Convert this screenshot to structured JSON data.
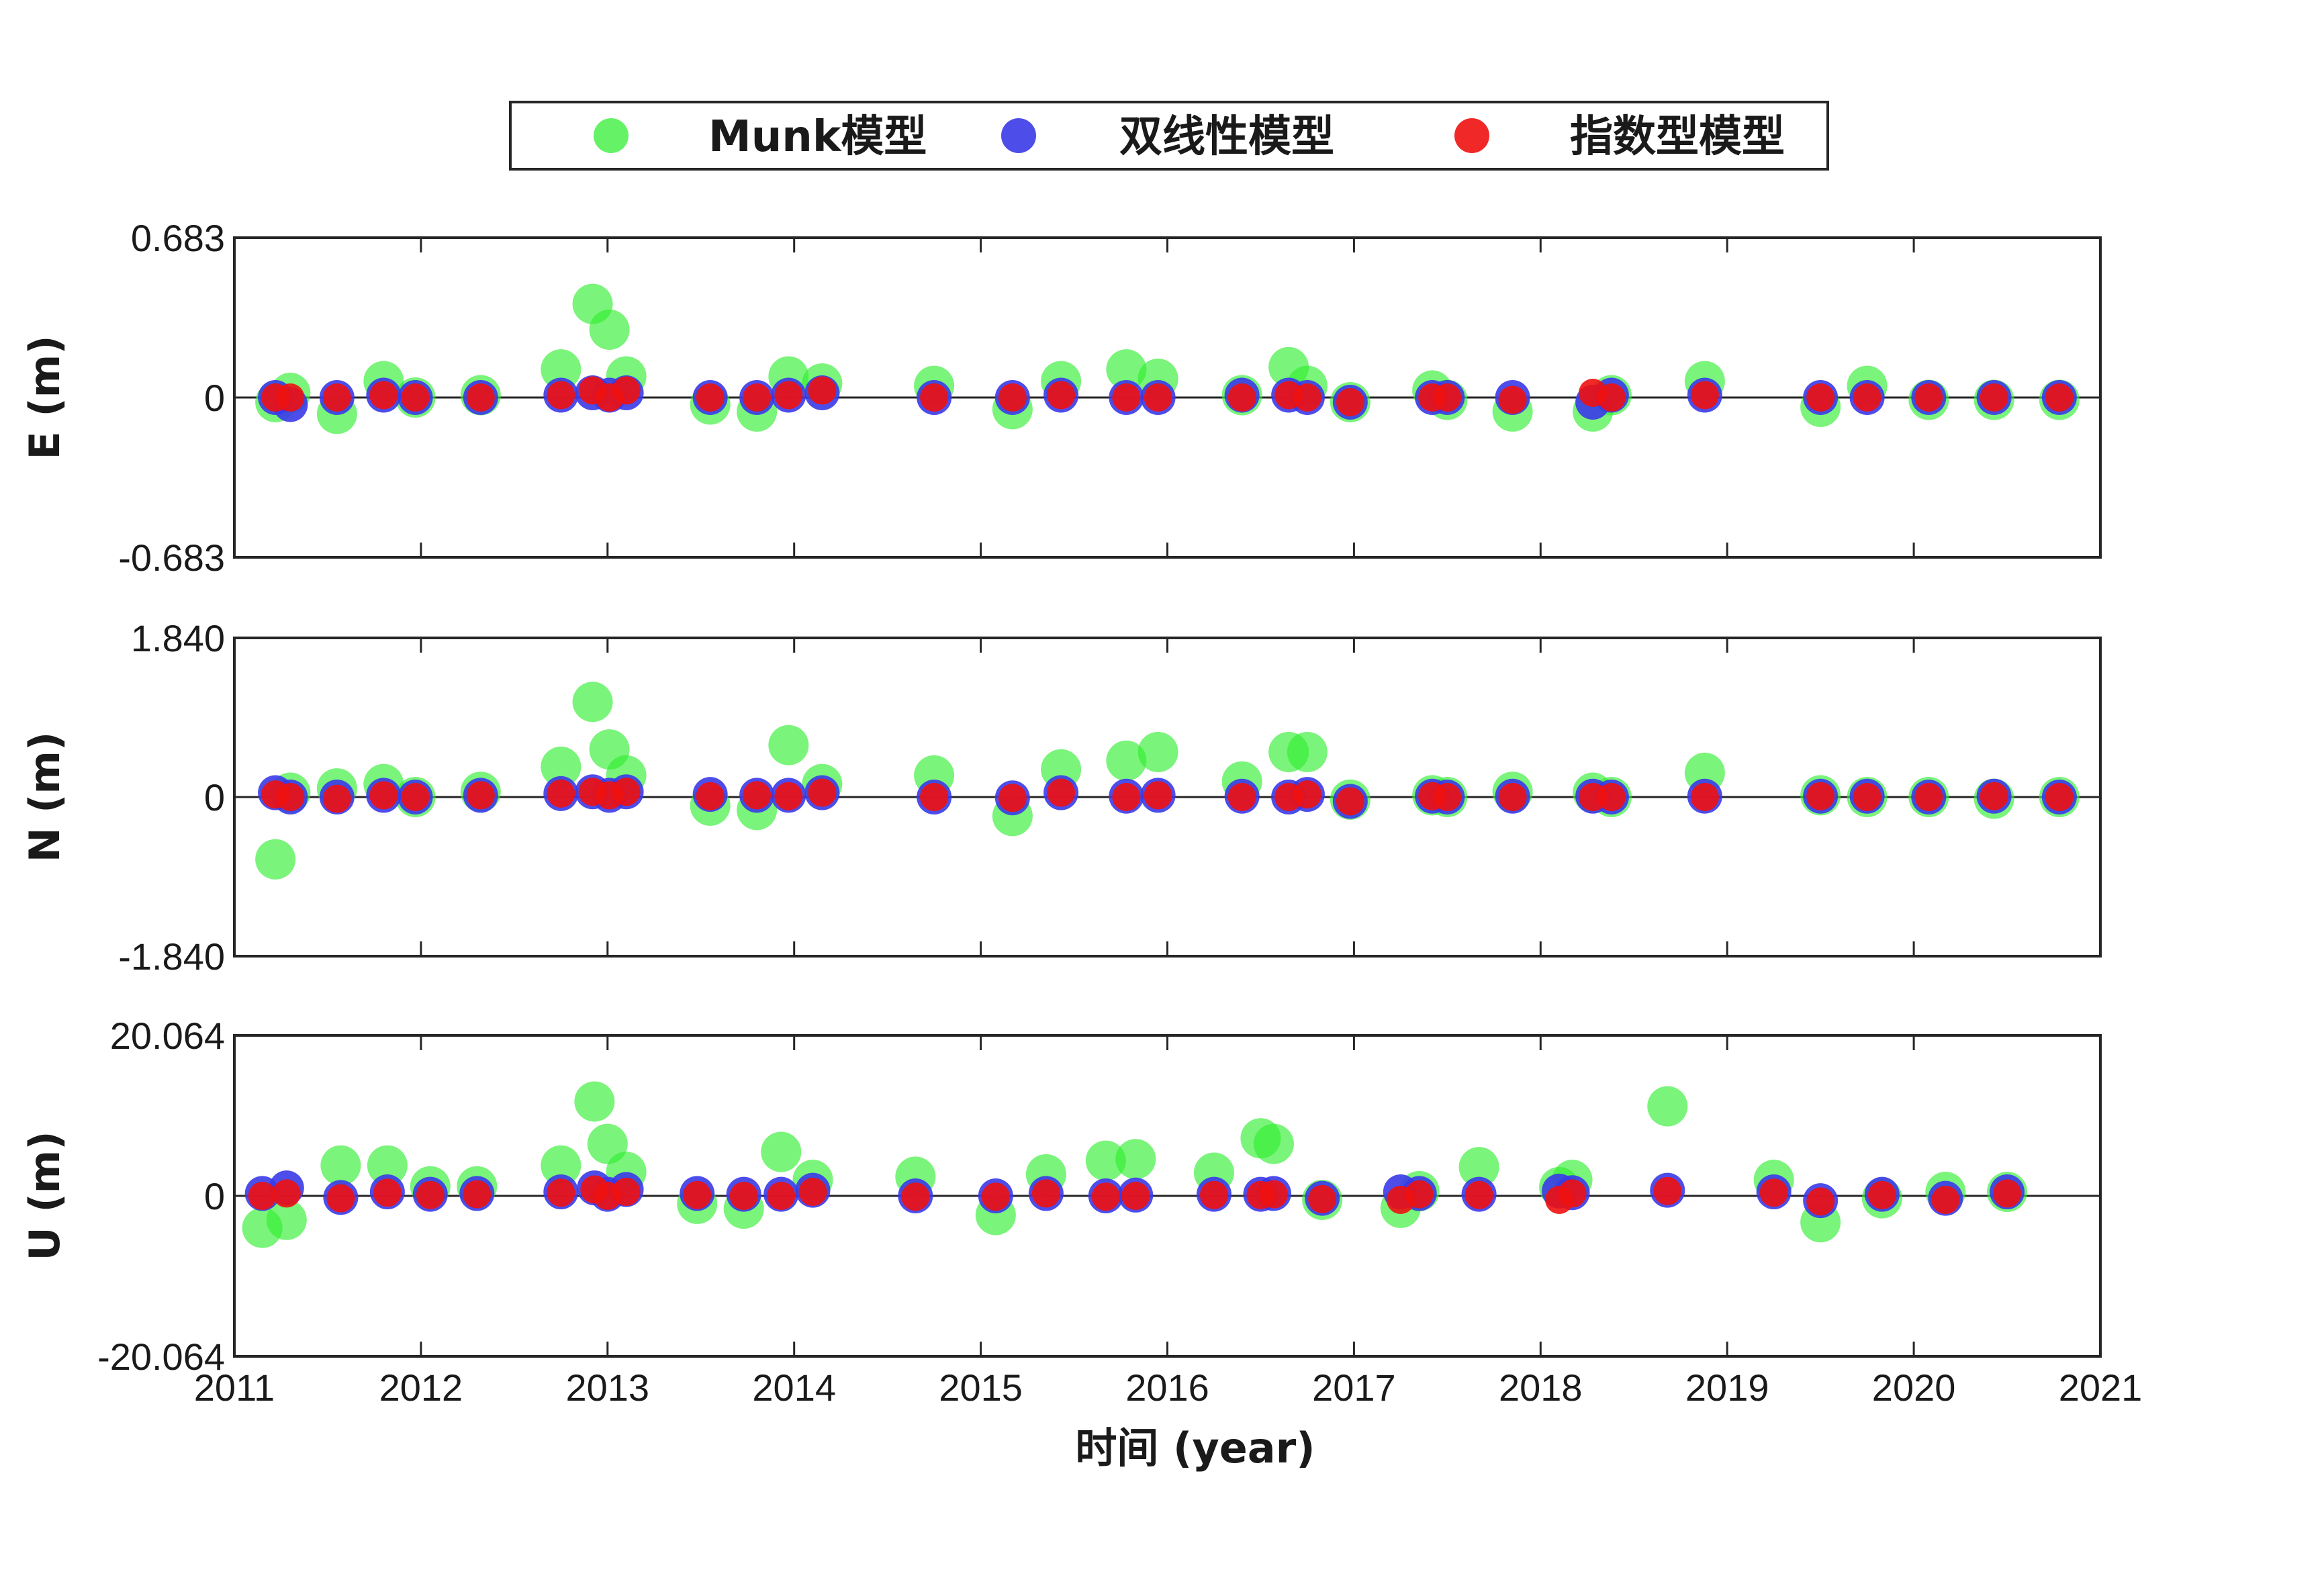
{
  "chart_data": {
    "type": "scatter",
    "xlabel": "时间 (year)",
    "xlim": [
      2011,
      2021
    ],
    "xticks": [
      2011,
      2012,
      2013,
      2014,
      2015,
      2016,
      2017,
      2018,
      2019,
      2020,
      2021
    ],
    "legend": {
      "placement": "top-center",
      "entries": [
        {
          "name": "Munk模型",
          "color": "#33ee33"
        },
        {
          "name": "双线性模型",
          "color": "#3a3ae8"
        },
        {
          "name": "指数型模型",
          "color": "#ee1111"
        }
      ]
    },
    "panels": [
      {
        "ylabel": "E (m)",
        "ylim": [
          -0.683,
          0.683
        ],
        "ytick_labels": [
          "-0.683",
          "0",
          "0.683"
        ],
        "series": [
          {
            "name": "Munk模型",
            "x": [
              2011.22,
              2011.3,
              2011.55,
              2011.8,
              2011.97,
              2012.32,
              2012.75,
              2012.92,
              2013.01,
              2013.1,
              2013.55,
              2013.8,
              2013.97,
              2014.15,
              2014.75,
              2015.17,
              2015.43,
              2015.78,
              2015.95,
              2016.4,
              2016.65,
              2016.75,
              2016.98,
              2017.42,
              2017.5,
              2017.85,
              2018.28,
              2018.38,
              2018.88,
              2019.5,
              2019.75,
              2020.08,
              2020.43,
              2020.78
            ],
            "y": [
              -0.02,
              0.02,
              -0.07,
              0.07,
              0.0,
              0.01,
              0.12,
              0.4,
              0.29,
              0.09,
              -0.03,
              -0.06,
              0.09,
              0.06,
              0.05,
              -0.05,
              0.07,
              0.12,
              0.08,
              0.01,
              0.13,
              0.05,
              -0.02,
              0.03,
              -0.01,
              -0.06,
              -0.06,
              0.01,
              0.07,
              -0.04,
              0.05,
              -0.01,
              -0.01,
              -0.01
            ]
          },
          {
            "name": "双线性模型",
            "x": [
              2011.22,
              2011.3,
              2011.55,
              2011.8,
              2011.97,
              2012.32,
              2012.75,
              2012.92,
              2013.01,
              2013.1,
              2013.55,
              2013.8,
              2013.97,
              2014.15,
              2014.75,
              2015.17,
              2015.43,
              2015.78,
              2015.95,
              2016.4,
              2016.65,
              2016.75,
              2016.98,
              2017.42,
              2017.5,
              2017.85,
              2018.28,
              2018.38,
              2018.88,
              2019.5,
              2019.75,
              2020.08,
              2020.43,
              2020.78
            ],
            "y": [
              0.0,
              -0.03,
              0.0,
              0.01,
              0.0,
              0.0,
              0.01,
              0.02,
              0.01,
              0.02,
              0.0,
              0.0,
              0.01,
              0.02,
              0.0,
              0.0,
              0.01,
              0.0,
              0.0,
              0.01,
              0.01,
              0.0,
              -0.02,
              0.0,
              0.0,
              0.0,
              -0.02,
              0.01,
              0.01,
              0.0,
              0.0,
              0.0,
              0.0,
              0.0
            ]
          },
          {
            "name": "指数型模型",
            "x": [
              2011.22,
              2011.3,
              2011.55,
              2011.8,
              2011.97,
              2012.32,
              2012.75,
              2012.92,
              2013.01,
              2013.1,
              2013.55,
              2013.8,
              2013.97,
              2014.15,
              2014.75,
              2015.17,
              2015.43,
              2015.78,
              2015.95,
              2016.4,
              2016.65,
              2016.75,
              2016.98,
              2017.42,
              2017.5,
              2017.85,
              2018.28,
              2018.38,
              2018.88,
              2019.5,
              2019.75,
              2020.08,
              2020.43,
              2020.78
            ],
            "y": [
              0.0,
              0.0,
              0.0,
              0.01,
              0.0,
              0.0,
              0.01,
              0.03,
              0.0,
              0.03,
              0.0,
              0.0,
              0.01,
              0.03,
              0.0,
              0.0,
              0.01,
              0.0,
              0.0,
              0.0,
              0.01,
              0.0,
              -0.02,
              0.0,
              0.0,
              -0.01,
              0.02,
              0.0,
              0.01,
              0.0,
              0.0,
              0.0,
              0.0,
              0.0
            ]
          }
        ]
      },
      {
        "ylabel": "N (m)",
        "ylim": [
          -1.84,
          1.84
        ],
        "ytick_labels": [
          "-1.840",
          "0",
          "1.840"
        ],
        "series": [
          {
            "name": "Munk模型",
            "x": [
              2011.22,
              2011.3,
              2011.55,
              2011.8,
              2011.97,
              2012.32,
              2012.75,
              2012.92,
              2013.01,
              2013.1,
              2013.55,
              2013.8,
              2013.97,
              2014.15,
              2014.75,
              2015.17,
              2015.43,
              2015.78,
              2015.95,
              2016.4,
              2016.65,
              2016.75,
              2016.98,
              2017.42,
              2017.5,
              2017.85,
              2018.28,
              2018.38,
              2018.88,
              2019.5,
              2019.75,
              2020.08,
              2020.43,
              2020.78
            ],
            "y": [
              -0.72,
              0.05,
              0.1,
              0.15,
              0.0,
              0.06,
              0.35,
              1.1,
              0.55,
              0.25,
              -0.1,
              -0.15,
              0.6,
              0.15,
              0.25,
              -0.22,
              0.32,
              0.42,
              0.52,
              0.18,
              0.52,
              0.52,
              -0.03,
              0.02,
              0.0,
              0.06,
              0.05,
              0.0,
              0.28,
              0.02,
              0.0,
              0.0,
              -0.02,
              0.0
            ]
          },
          {
            "name": "双线性模型",
            "x": [
              2011.22,
              2011.3,
              2011.55,
              2011.8,
              2011.97,
              2012.32,
              2012.75,
              2012.92,
              2013.01,
              2013.1,
              2013.55,
              2013.8,
              2013.97,
              2014.15,
              2014.75,
              2015.17,
              2015.43,
              2015.78,
              2015.95,
              2016.4,
              2016.65,
              2016.75,
              2016.98,
              2017.42,
              2017.5,
              2017.85,
              2018.28,
              2018.38,
              2018.88,
              2019.5,
              2019.75,
              2020.08,
              2020.43,
              2020.78
            ],
            "y": [
              0.05,
              0.0,
              0.0,
              0.02,
              0.0,
              0.02,
              0.04,
              0.06,
              0.02,
              0.06,
              0.03,
              0.02,
              0.02,
              0.05,
              0.0,
              -0.01,
              0.05,
              0.01,
              0.02,
              0.01,
              0.0,
              0.03,
              -0.05,
              0.01,
              0.0,
              0.01,
              0.01,
              0.0,
              0.01,
              0.01,
              0.01,
              0.0,
              0.01,
              0.0
            ]
          },
          {
            "name": "指数型模型",
            "x": [
              2011.22,
              2011.3,
              2011.55,
              2011.8,
              2011.97,
              2012.32,
              2012.75,
              2012.92,
              2013.01,
              2013.1,
              2013.55,
              2013.8,
              2013.97,
              2014.15,
              2014.75,
              2015.17,
              2015.43,
              2015.78,
              2015.95,
              2016.4,
              2016.65,
              2016.75,
              2016.98,
              2017.42,
              2017.5,
              2017.85,
              2018.28,
              2018.38,
              2018.88,
              2019.5,
              2019.75,
              2020.08,
              2020.43,
              2020.78
            ],
            "y": [
              0.03,
              0.0,
              -0.02,
              0.02,
              0.0,
              0.02,
              0.04,
              0.06,
              0.02,
              0.06,
              0.01,
              0.02,
              0.01,
              0.05,
              0.0,
              -0.01,
              0.05,
              0.0,
              0.02,
              0.0,
              0.0,
              0.03,
              -0.05,
              0.01,
              0.0,
              0.0,
              0.0,
              0.0,
              0.0,
              0.01,
              0.0,
              0.0,
              0.01,
              0.0
            ]
          }
        ]
      },
      {
        "ylabel": "U (m)",
        "ylim": [
          -20.064,
          20.064
        ],
        "ytick_labels": [
          "-20.064",
          "0",
          "20.064"
        ],
        "series": [
          {
            "name": "Munk模型",
            "x": [
              2011.15,
              2011.28,
              2011.57,
              2011.82,
              2012.05,
              2012.3,
              2012.75,
              2012.93,
              2013.0,
              2013.1,
              2013.48,
              2013.73,
              2013.93,
              2014.1,
              2014.65,
              2015.08,
              2015.35,
              2015.67,
              2015.83,
              2016.25,
              2016.5,
              2016.57,
              2016.83,
              2017.25,
              2017.35,
              2017.67,
              2018.1,
              2018.17,
              2018.68,
              2019.25,
              2019.5,
              2019.83,
              2020.17,
              2020.5
            ],
            "y": [
              -4.0,
              -3.0,
              3.8,
              3.8,
              1.2,
              1.2,
              3.8,
              11.8,
              6.5,
              3.0,
              -1.0,
              -1.6,
              5.5,
              2.0,
              2.4,
              -2.4,
              2.7,
              4.4,
              4.6,
              2.9,
              7.2,
              6.5,
              -0.5,
              -1.5,
              0.6,
              3.6,
              1.1,
              2.0,
              11.2,
              2.0,
              -3.3,
              -0.3,
              0.5,
              0.5
            ]
          },
          {
            "name": "双线性模型",
            "x": [
              2011.15,
              2011.28,
              2011.57,
              2011.82,
              2012.05,
              2012.3,
              2012.75,
              2012.93,
              2013.0,
              2013.1,
              2013.48,
              2013.73,
              2013.93,
              2014.1,
              2014.65,
              2015.08,
              2015.35,
              2015.67,
              2015.83,
              2016.25,
              2016.5,
              2016.57,
              2016.83,
              2017.25,
              2017.35,
              2017.67,
              2018.1,
              2018.17,
              2018.68,
              2019.25,
              2019.5,
              2019.83,
              2020.17,
              2020.5
            ],
            "y": [
              0.3,
              1.0,
              -0.2,
              0.5,
              0.2,
              0.3,
              0.5,
              1.0,
              0.2,
              0.8,
              0.3,
              0.2,
              0.2,
              0.7,
              0.0,
              0.0,
              0.3,
              0.0,
              0.1,
              0.2,
              0.2,
              0.3,
              -0.3,
              0.5,
              0.3,
              0.2,
              0.6,
              0.4,
              0.7,
              0.5,
              -0.6,
              0.2,
              -0.3,
              0.5
            ]
          },
          {
            "name": "指数型模型",
            "x": [
              2011.15,
              2011.28,
              2011.57,
              2011.82,
              2012.05,
              2012.3,
              2012.75,
              2012.93,
              2013.0,
              2013.1,
              2013.48,
              2013.73,
              2013.93,
              2014.1,
              2014.65,
              2015.08,
              2015.35,
              2015.67,
              2015.83,
              2016.25,
              2016.5,
              2016.57,
              2016.83,
              2017.25,
              2017.35,
              2017.67,
              2018.1,
              2018.17,
              2018.68,
              2019.25,
              2019.5,
              2019.83,
              2020.17,
              2020.5
            ],
            "y": [
              0.0,
              0.3,
              -0.3,
              0.4,
              0.1,
              0.2,
              0.4,
              0.8,
              0.0,
              0.5,
              0.1,
              0.0,
              0.0,
              0.5,
              -0.1,
              -0.1,
              0.3,
              -0.1,
              0.0,
              0.1,
              0.1,
              0.2,
              -0.4,
              -0.5,
              0.2,
              0.1,
              -0.5,
              0.3,
              0.6,
              0.4,
              -0.7,
              0.1,
              -0.5,
              0.3
            ]
          }
        ]
      }
    ]
  }
}
